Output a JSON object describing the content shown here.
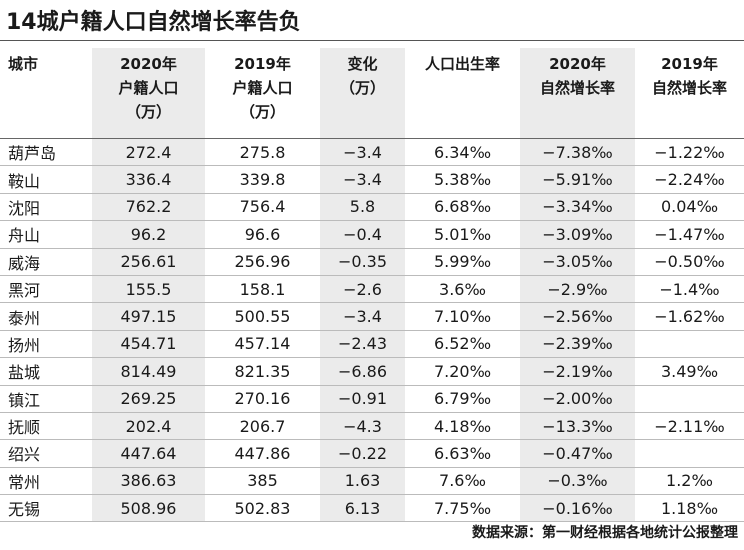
{
  "header": {
    "title": "14城户籍人口自然增长率告负"
  },
  "table": {
    "columns": [
      [
        "城市"
      ],
      [
        "2020年",
        "户籍人口",
        "（万）"
      ],
      [
        "2019年",
        "户籍人口",
        "（万）"
      ],
      [
        "变化",
        "（万）"
      ],
      [
        "人口出生率"
      ],
      [
        "2020年",
        "自然增长率"
      ],
      [
        "2019年",
        "自然增长率"
      ]
    ],
    "rows": [
      [
        "葫芦岛",
        "272.4",
        "275.8",
        "−3.4",
        "6.34‰",
        "−7.38‰",
        "−1.22‰"
      ],
      [
        "鞍山",
        "336.4",
        "339.8",
        "−3.4",
        "5.38‰",
        "−5.91‰",
        "−2.24‰"
      ],
      [
        "沈阳",
        "762.2",
        "756.4",
        "5.8",
        "6.68‰",
        "−3.34‰",
        "0.04‰"
      ],
      [
        "舟山",
        "96.2",
        "96.6",
        "−0.4",
        "5.01‰",
        "−3.09‰",
        "−1.47‰"
      ],
      [
        "威海",
        "256.61",
        "256.96",
        "−0.35",
        "5.99‰",
        "−3.05‰",
        "−0.50‰"
      ],
      [
        "黑河",
        "155.5",
        "158.1",
        "−2.6",
        "3.6‰",
        "−2.9‰",
        "−1.4‰"
      ],
      [
        "泰州",
        "497.15",
        "500.55",
        "−3.4",
        "7.10‰",
        "−2.56‰",
        "−1.62‰"
      ],
      [
        "扬州",
        "454.71",
        "457.14",
        "−2.43",
        "6.52‰",
        "−2.39‰",
        null
      ],
      [
        "盐城",
        "814.49",
        "821.35",
        "−6.86",
        "7.20‰",
        "−2.19‰",
        "3.49‰"
      ],
      [
        "镇江",
        "269.25",
        "270.16",
        "−0.91",
        "6.79‰",
        "−2.00‰",
        null
      ],
      [
        "抚顺",
        "202.4",
        "206.7",
        "−4.3",
        "4.18‰",
        "−13.3‰",
        "−2.11‰"
      ],
      [
        "绍兴",
        "447.64",
        "447.86",
        "−0.22",
        "6.63‰",
        "−0.47‰",
        null
      ],
      [
        "常州",
        "386.63",
        "385",
        "1.63",
        "7.6‰",
        "−0.3‰",
        "1.2‰"
      ],
      [
        "无锡",
        "508.96",
        "502.83",
        "6.13",
        "7.75‰",
        "−0.16‰",
        "1.18‰"
      ]
    ]
  },
  "footer": {
    "source": "数据来源：第一财经根据各地统计公报整理"
  }
}
